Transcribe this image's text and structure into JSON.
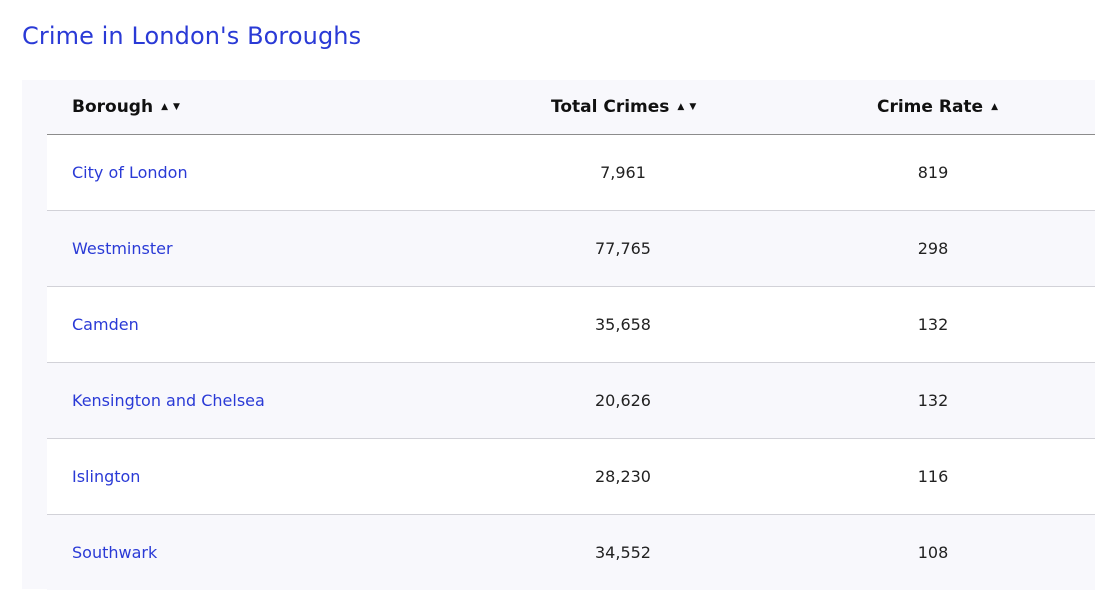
{
  "page": {
    "title": "Crime in London's Boroughs"
  },
  "table": {
    "columns": [
      {
        "label": "Borough",
        "sort_icons": [
          "▲",
          "▼"
        ]
      },
      {
        "label": "Total Crimes",
        "sort_icons": [
          "▲",
          "▼"
        ]
      },
      {
        "label": "Crime Rate",
        "sort_icons": [
          "▲"
        ]
      }
    ],
    "rows": [
      {
        "borough": "City of London",
        "total": "7,961",
        "rate": "819"
      },
      {
        "borough": "Westminster",
        "total": "77,765",
        "rate": "298"
      },
      {
        "borough": "Camden",
        "total": "35,658",
        "rate": "132"
      },
      {
        "borough": "Kensington and Chelsea",
        "total": "20,626",
        "rate": "132"
      },
      {
        "borough": "Islington",
        "total": "28,230",
        "rate": "116"
      },
      {
        "borough": "Southwark",
        "total": "34,552",
        "rate": "108"
      }
    ]
  },
  "colors": {
    "accent": "#2a3ad6",
    "table_background": "#f8f8fc",
    "row_alt": "#ffffff",
    "header_rule": "#8c8c8c",
    "row_rule": "#d2d2d8"
  }
}
